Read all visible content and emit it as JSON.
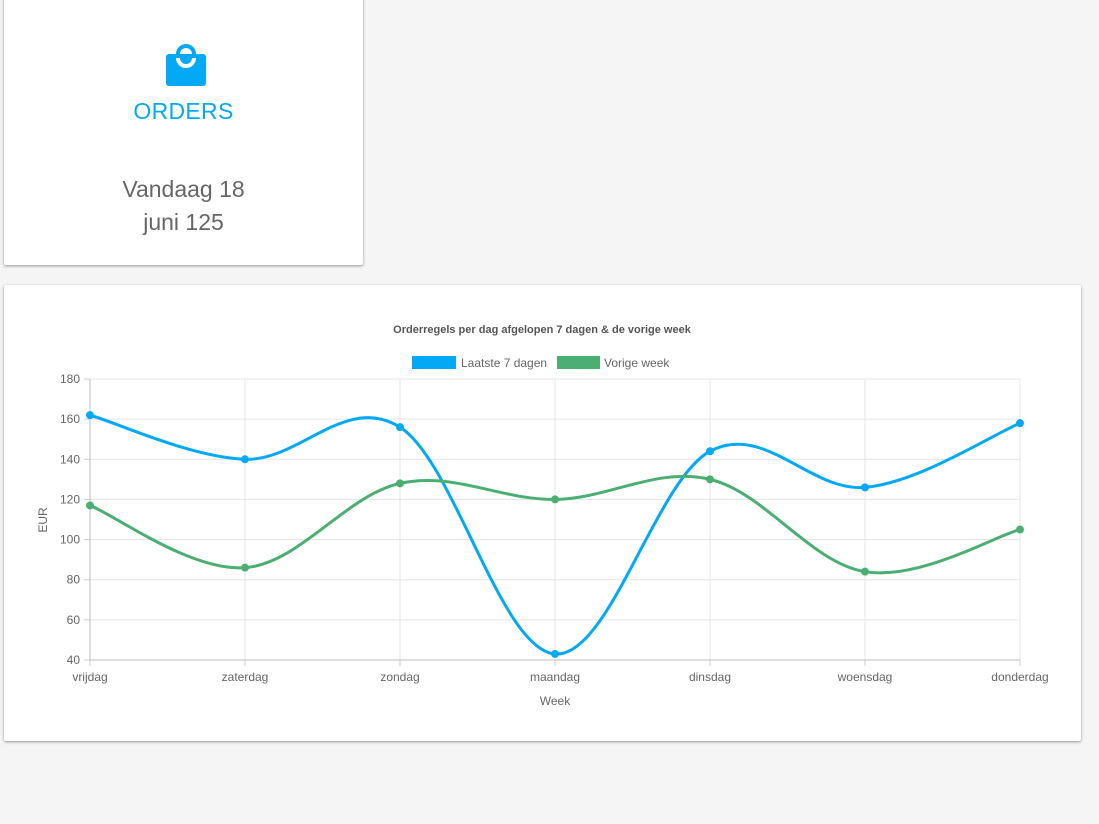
{
  "orders_card": {
    "icon": "shopping-bag-icon",
    "title": "ORDERS",
    "today_text": "Vandaag 18",
    "month_text": "juni 125",
    "accent_color": "#03a9f4"
  },
  "chart_data": {
    "type": "line",
    "title": "Orderregels per dag afgelopen 7 dagen & de vorige week",
    "xlabel": "Week",
    "ylabel": "EUR",
    "categories": [
      "vrijdag",
      "zaterdag",
      "zondag",
      "maandag",
      "dinsdag",
      "woensdag",
      "donderdag"
    ],
    "ylim": [
      40,
      180
    ],
    "yticks": [
      40,
      60,
      80,
      100,
      120,
      140,
      160,
      180
    ],
    "grid": true,
    "legend_position": "top-center",
    "series": [
      {
        "name": "Laatste 7 dagen",
        "color": "#03a9f4",
        "values": [
          162,
          140,
          156,
          43,
          144,
          126,
          158
        ]
      },
      {
        "name": "Vorige week",
        "color": "#4caf72",
        "values": [
          117,
          86,
          128,
          120,
          130,
          84,
          105
        ]
      }
    ]
  }
}
